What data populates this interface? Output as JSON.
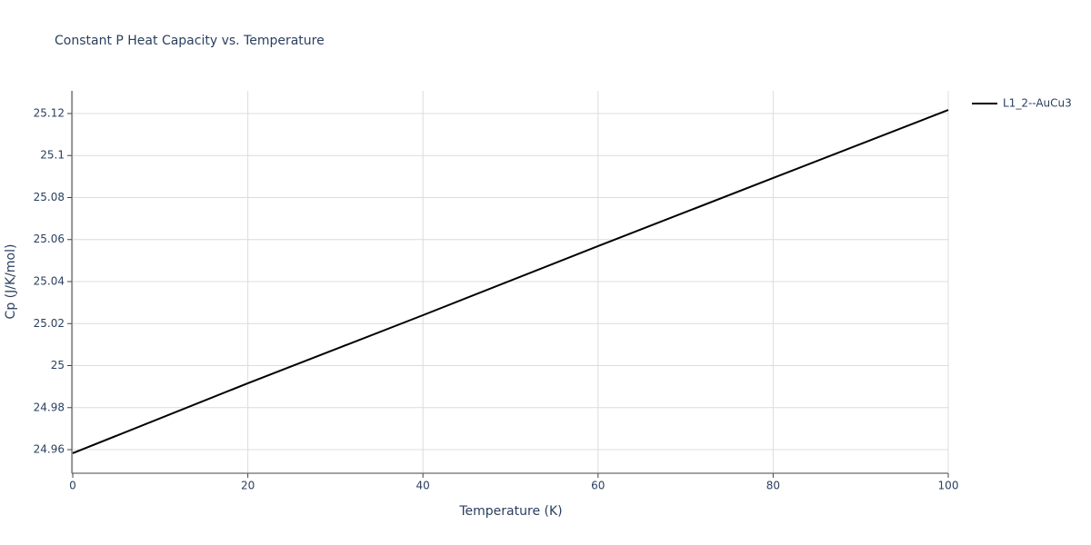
{
  "chart_data": {
    "type": "line",
    "title": "Constant P Heat Capacity vs. Temperature",
    "x_label": "Temperature (K)",
    "y_label": "Cp (J/K/mol)",
    "x": [
      0,
      20,
      40,
      60,
      80,
      100
    ],
    "series": [
      {
        "name": "L1_2--AuCu3",
        "color": "#000000",
        "values": [
          24.9583,
          24.9916,
          25.024,
          25.0569,
          25.0893,
          25.1217
        ]
      }
    ],
    "xlim": [
      0,
      100
    ],
    "xticks": [
      0,
      20,
      40,
      60,
      80,
      100
    ],
    "ylim": [
      24.9492,
      25.1308
    ],
    "yticks": [
      24.96,
      24.98,
      25,
      25.02,
      25.04,
      25.06,
      25.08,
      25.1,
      25.12
    ],
    "grid": true,
    "legend": "right"
  }
}
